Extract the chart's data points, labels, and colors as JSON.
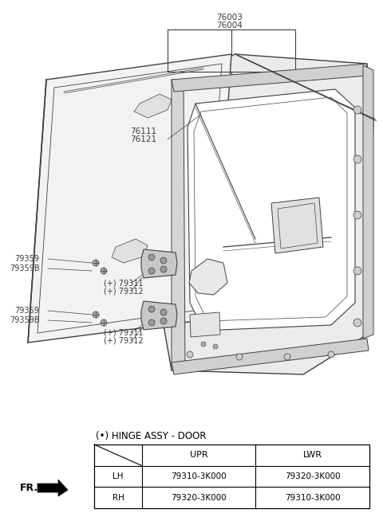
{
  "bg_color": "#ffffff",
  "line_color": "#404040",
  "fig_w": 4.8,
  "fig_h": 6.54,
  "dpi": 100,
  "table_title": "(•) HINGE ASSY - DOOR",
  "table_rows": [
    [
      "LH",
      "79310-3K000",
      "79320-3K000"
    ],
    [
      "RH",
      "79320-3K000",
      "79310-3K000"
    ]
  ],
  "fr_label": "FR."
}
